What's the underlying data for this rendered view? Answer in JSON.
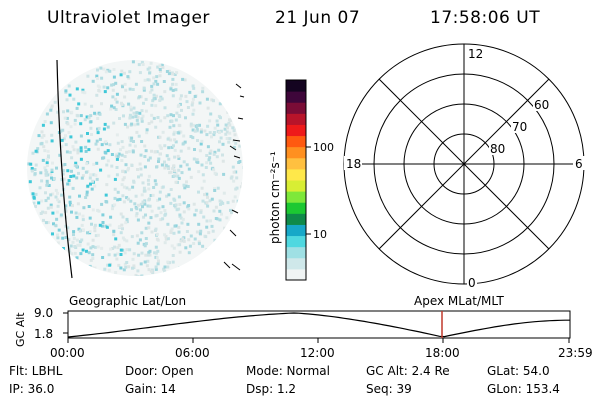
{
  "header": {
    "instrument": "Ultraviolet Imager",
    "date": "21 Jun 07",
    "time": "17:58:06 UT"
  },
  "colorbar": {
    "label": "photon cm⁻²s⁻¹",
    "ticks": [
      "100",
      "10"
    ],
    "scale": "log",
    "colors": [
      "#f0f4f4",
      "#cfe8ea",
      "#9fe0e4",
      "#4fd8e0",
      "#17a8c8",
      "#0f8a4a",
      "#1cc832",
      "#7ee83a",
      "#d8ee34",
      "#ffe84a",
      "#ffc040",
      "#ff9020",
      "#ff5a10",
      "#ee1a1a",
      "#b8142a",
      "#7a0c36",
      "#3e063a",
      "#140420"
    ]
  },
  "polar": {
    "mlt_labels": [
      "12",
      "18",
      "6",
      "0"
    ],
    "lat_labels": [
      "60",
      "70",
      "80"
    ]
  },
  "altplot": {
    "left_title": "Geographic Lat/Lon",
    "right_title": "Apex  MLat/MLT",
    "ylabel": "GC Alt",
    "ytick_top": "9.0",
    "ytick_bottom": "1.8",
    "xticks": [
      "00:00",
      "06:00",
      "12:00",
      "18:00",
      "23:59"
    ],
    "marker_color": "#c0392b"
  },
  "info": {
    "row1": {
      "flt": "Flt: LBHL",
      "door": "Door: Open",
      "mode": "Mode: Normal",
      "gcalt": "GC Alt: 2.4 Re",
      "glat": "GLat:  54.0"
    },
    "row2": {
      "ip": "IP: 36.0",
      "gain": "Gain: 14",
      "dsp": "Dsp:     1.2",
      "seq": "Seq: 39",
      "glon": "GLon: 153.4"
    }
  }
}
